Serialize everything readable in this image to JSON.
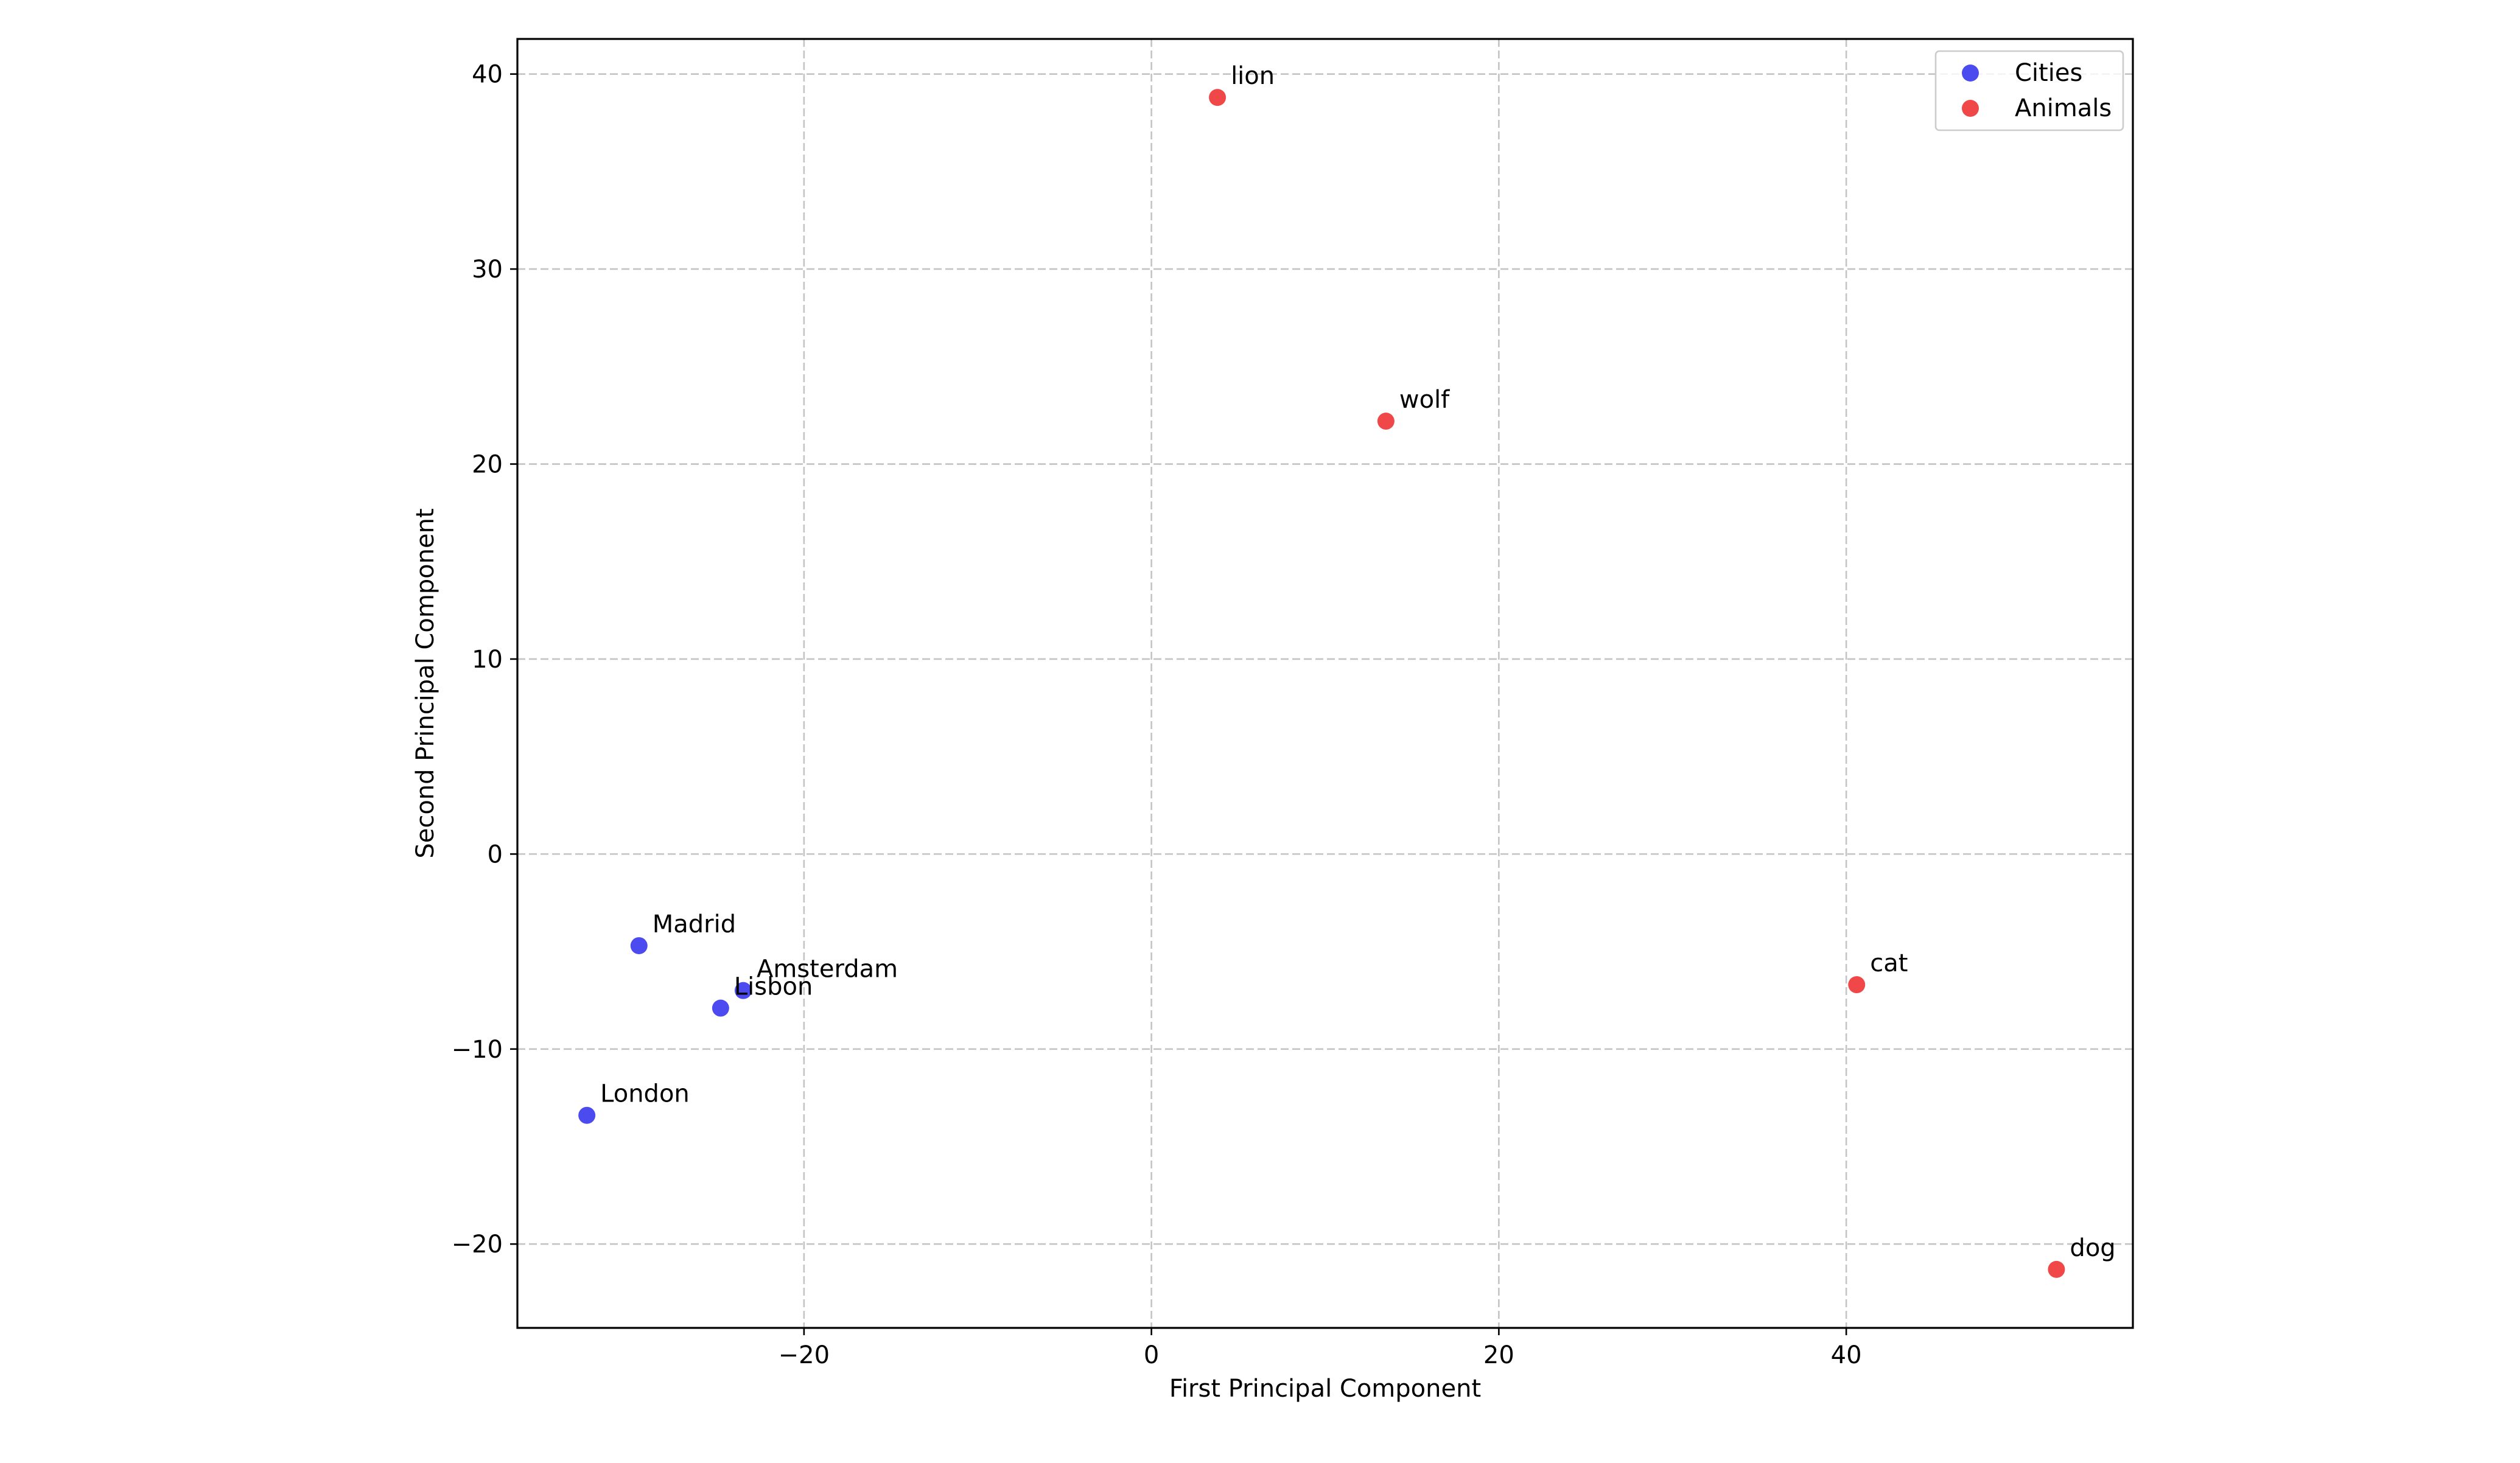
{
  "chart_data": {
    "type": "scatter",
    "title": "",
    "xlabel": "First Principal Component",
    "ylabel": "Second Principal Component",
    "xlim": [
      -36.5,
      56.5
    ],
    "ylim": [
      -24.3,
      41.8
    ],
    "xticks": [
      -20,
      0,
      20,
      40
    ],
    "yticks": [
      -20,
      -10,
      0,
      10,
      20,
      30,
      40
    ],
    "grid": true,
    "legend_position": "top-right",
    "series": [
      {
        "name": "Cities",
        "color": "#4b4bf0",
        "points": [
          {
            "label": "Madrid",
            "x": -29.5,
            "y": -4.7
          },
          {
            "label": "Amsterdam",
            "x": -23.5,
            "y": -7.0
          },
          {
            "label": "Lisbon",
            "x": -24.8,
            "y": -7.9
          },
          {
            "label": "London",
            "x": -32.5,
            "y": -13.4
          }
        ]
      },
      {
        "name": "Animals",
        "color": "#f04848",
        "points": [
          {
            "label": "lion",
            "x": 3.8,
            "y": 38.8
          },
          {
            "label": "wolf",
            "x": 13.5,
            "y": 22.2
          },
          {
            "label": "cat",
            "x": 40.6,
            "y": -6.7
          },
          {
            "label": "dog",
            "x": 52.1,
            "y": -21.3
          }
        ]
      }
    ]
  }
}
